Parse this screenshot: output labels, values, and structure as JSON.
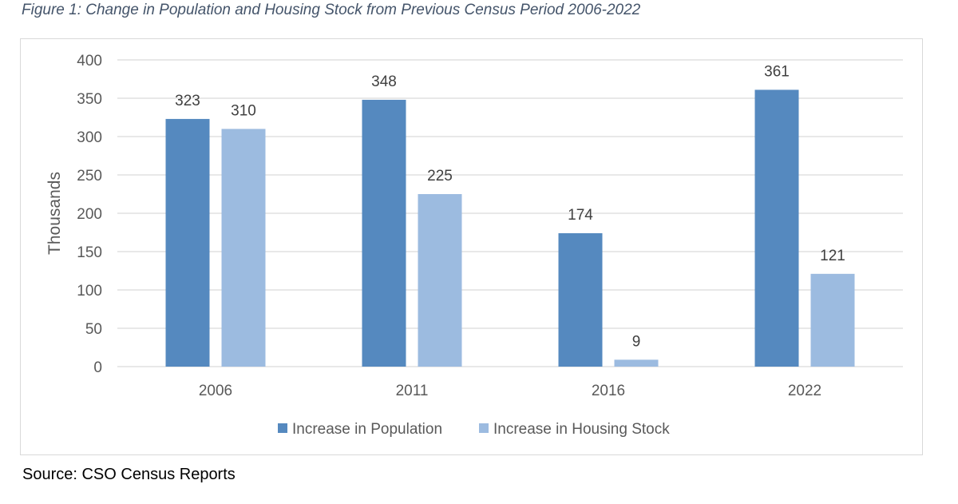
{
  "caption": "Figure 1: Change in Population and Housing Stock from Previous Census Period 2006-2022",
  "source": "Source: CSO Census Reports",
  "chart_data": {
    "type": "bar",
    "categories": [
      "2006",
      "2011",
      "2016",
      "2022"
    ],
    "series": [
      {
        "name": "Increase in Population",
        "values": [
          323,
          348,
          174,
          361
        ],
        "color": "#5589bf"
      },
      {
        "name": "Increase in Housing Stock",
        "values": [
          310,
          225,
          9,
          121
        ],
        "color": "#9cbbe0"
      }
    ],
    "ylabel": "Thousands",
    "ylim": [
      0,
      400
    ],
    "yticks": [
      0,
      50,
      100,
      150,
      200,
      250,
      300,
      350,
      400
    ],
    "grid": true,
    "legend": "bottom",
    "data_labels": true
  },
  "colors": {
    "grid": "#d9d9d9",
    "text": "#595959"
  }
}
